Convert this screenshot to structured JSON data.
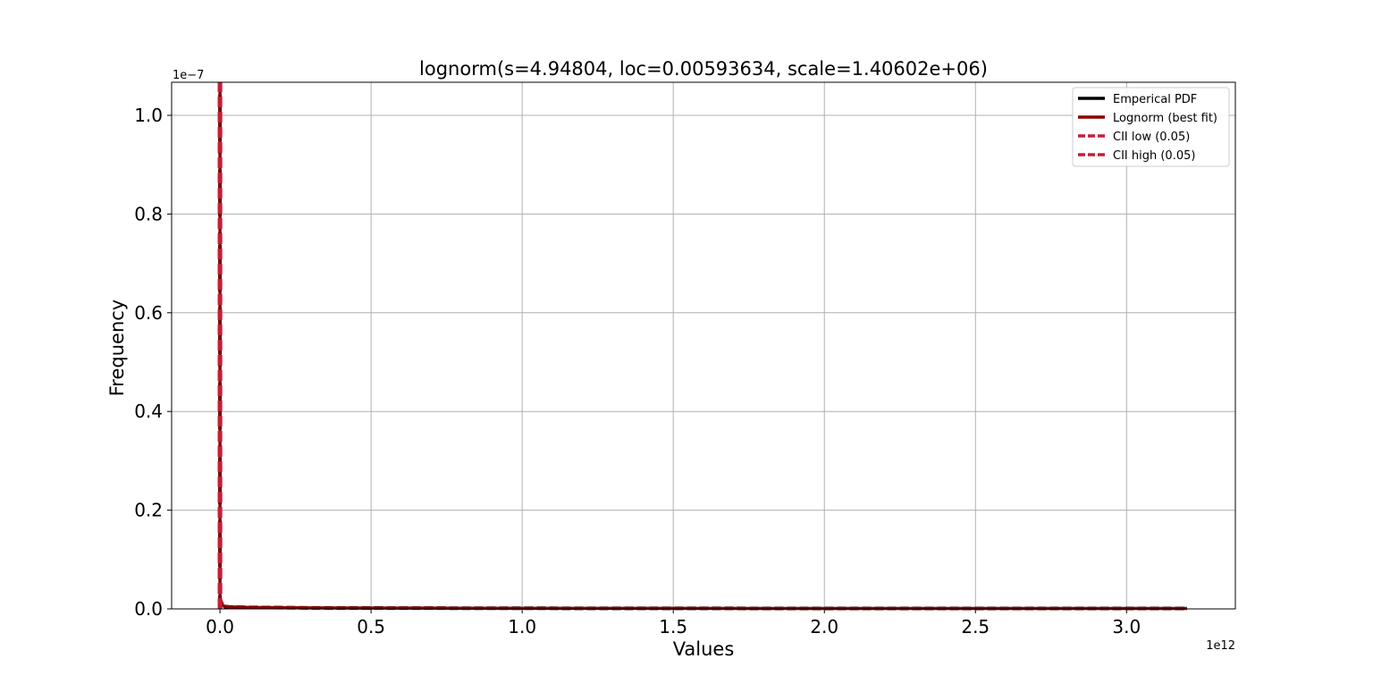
{
  "chart_data": {
    "type": "line",
    "title": "lognorm(s=4.94804, loc=0.00593634, scale=1.40602e+06)",
    "xlabel": "Values",
    "ylabel": "Frequency",
    "x_offset_text": "1e12",
    "y_offset_text": "1e−7",
    "xlim": [
      -0.16,
      3.36
    ],
    "ylim": [
      0,
      1.067
    ],
    "x_scale_factor": 1000000000000.0,
    "y_scale_factor": 1e-07,
    "x_ticks": [
      0.0,
      0.5,
      1.0,
      1.5,
      2.0,
      2.5,
      3.0
    ],
    "x_tick_labels": [
      "0.0",
      "0.5",
      "1.0",
      "1.5",
      "2.0",
      "2.5",
      "3.0"
    ],
    "y_ticks": [
      0.0,
      0.2,
      0.4,
      0.6,
      0.8,
      1.0
    ],
    "y_tick_labels": [
      "0.0",
      "0.2",
      "0.4",
      "0.6",
      "0.8",
      "1.0"
    ],
    "grid": true,
    "legend_position": "top-right",
    "series": [
      {
        "name": "Emperical PDF",
        "color": "#000000",
        "style": "dashed-black",
        "x": [
          0.0,
          0.0,
          0.01,
          0.03,
          0.1,
          0.3,
          0.7,
          1.2,
          1.8,
          2.4,
          3.0,
          3.2
        ],
        "y": [
          1.067,
          0.02,
          0.005,
          0.004,
          0.003,
          0.002,
          0.0015,
          0.0012,
          0.001,
          0.001,
          0.0008,
          0.0008
        ]
      },
      {
        "name": "Lognorm (best fit)",
        "color": "#8b0000",
        "style": "solid",
        "x": [
          0.0,
          0.0,
          0.01,
          0.03,
          0.1,
          0.3,
          0.7,
          1.2,
          1.8,
          2.4,
          3.0,
          3.2
        ],
        "y": [
          1.067,
          0.02,
          0.006,
          0.004,
          0.003,
          0.002,
          0.0015,
          0.0012,
          0.001,
          0.001,
          0.0008,
          0.0008
        ]
      },
      {
        "name": "CII low (0.05)",
        "color": "#c41e3a",
        "style": "dashed",
        "x": [
          0.0,
          0.0
        ],
        "y": [
          0,
          1.067
        ]
      },
      {
        "name": "CII high (0.05)",
        "color": "#c41e3a",
        "style": "dashed",
        "x": [
          0.0,
          0.0
        ],
        "y": [
          0,
          1.067
        ]
      }
    ]
  }
}
